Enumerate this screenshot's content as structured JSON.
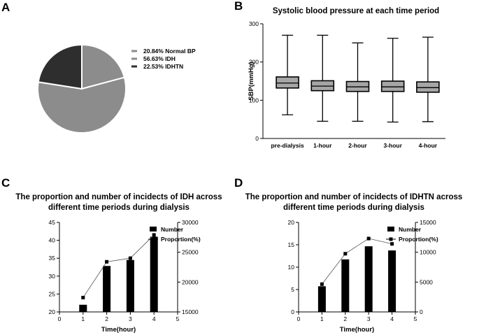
{
  "panels": {
    "a": "A",
    "b": "B",
    "c": "C",
    "d": "D"
  },
  "chart_data": [
    {
      "id": "A",
      "type": "pie",
      "title": "",
      "slices": [
        {
          "label": "20.84%  Normal BP",
          "value": 20.84,
          "color": "#8c8c8c"
        },
        {
          "label": "56.63%  IDH",
          "value": 56.63,
          "color": "#8c8c8c"
        },
        {
          "label": "22.53%  IDHTN",
          "value": 22.53,
          "color": "#2e2e2e"
        }
      ],
      "legend": "right"
    },
    {
      "id": "B",
      "type": "box",
      "title": "Systolic blood pressure at each time period",
      "ylabel": "SBP(mmHg)",
      "ylim": [
        0,
        300
      ],
      "yticks": [
        "0",
        "100",
        "200",
        "300"
      ],
      "categories": [
        "pre-dialysis",
        "1-hour",
        "2-hour",
        "3-hour",
        "4-hour"
      ],
      "boxes": [
        {
          "min": 62,
          "q1": 132,
          "median": 145,
          "q3": 161,
          "max": 270
        },
        {
          "min": 45,
          "q1": 125,
          "median": 137,
          "q3": 151,
          "max": 270
        },
        {
          "min": 45,
          "q1": 123,
          "median": 135,
          "q3": 149,
          "max": 250
        },
        {
          "min": 43,
          "q1": 123,
          "median": 135,
          "q3": 150,
          "max": 262
        },
        {
          "min": 44,
          "q1": 121,
          "median": 133,
          "q3": 148,
          "max": 265
        }
      ],
      "box_color": "#a6a6a6"
    },
    {
      "id": "C",
      "type": "bar+line",
      "title_lines": [
        "The proportion and number of incidects of IDH across",
        "different time periods during dialysis"
      ],
      "xlabel": "Time(hour)",
      "xlim": [
        0,
        5
      ],
      "xticks": [
        "0",
        "1",
        "2",
        "3",
        "4",
        "5"
      ],
      "ylim_left": [
        20,
        45
      ],
      "yticks_left": [
        "20",
        "25",
        "30",
        "35",
        "40",
        "45"
      ],
      "ylim_right": [
        15000,
        30000
      ],
      "yticks_right": [
        "15000",
        "20000",
        "25000",
        "30000"
      ],
      "x": [
        1,
        2,
        3,
        4
      ],
      "series": [
        {
          "name": "Number",
          "axis": "right",
          "kind": "bar",
          "values": [
            16200,
            22700,
            23700,
            27600
          ]
        },
        {
          "name": "Proportion(%)",
          "axis": "left",
          "kind": "line",
          "values": [
            24.0,
            34.0,
            35.0,
            41.5
          ]
        }
      ],
      "legend": "top-right"
    },
    {
      "id": "D",
      "type": "bar+line",
      "title_lines": [
        "The proportion and number of incidects of IDHTN across",
        "different time periods during dialysis"
      ],
      "xlabel": "Time(hour)",
      "xlim": [
        0,
        5
      ],
      "xticks": [
        "0",
        "1",
        "2",
        "3",
        "4",
        "5"
      ],
      "ylim_left": [
        0,
        20
      ],
      "yticks_left": [
        "0",
        "5",
        "10",
        "15",
        "20"
      ],
      "ylim_right": [
        0,
        15000
      ],
      "yticks_right": [
        "0",
        "5000",
        "10000",
        "15000"
      ],
      "x": [
        1,
        2,
        3,
        4
      ],
      "series": [
        {
          "name": "Number",
          "axis": "right",
          "kind": "bar",
          "values": [
            4300,
            8800,
            11000,
            10300
          ]
        },
        {
          "name": "Proportion(%)",
          "axis": "left",
          "kind": "line",
          "values": [
            6.2,
            13.0,
            16.4,
            15.2
          ]
        }
      ],
      "legend": "top-right"
    }
  ]
}
